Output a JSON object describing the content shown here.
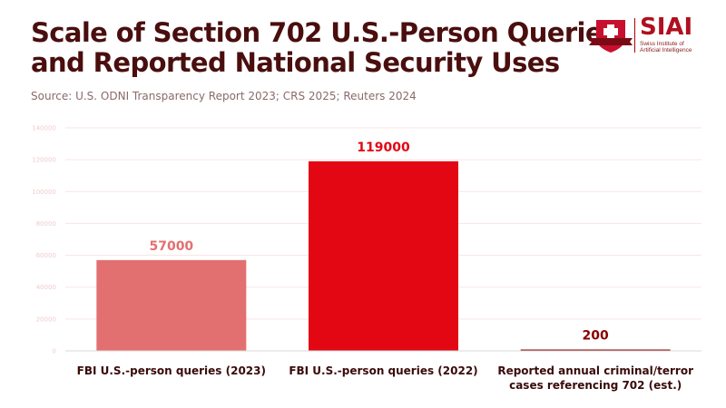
{
  "header": {
    "title_line1": "Scale of Section 702 U.S.-Person Queries",
    "title_line2": "and Reported National Security Uses",
    "source": "Source: U.S. ODNI Transparency Report 2023; CRS 2025; Reuters 2024"
  },
  "logo": {
    "name": "SIAI",
    "line1": "Swiss Institute of",
    "line2": "Artificial Intelligence"
  },
  "chart_data": {
    "type": "bar",
    "title": "Scale of Section 702 U.S.-Person Queries and Reported National Security Uses",
    "categories": [
      [
        "FBI U.S.-person queries (2023)"
      ],
      [
        "FBI U.S.-person queries (2022)"
      ],
      [
        "Reported annual criminal/terror",
        "cases referencing 702 (est.)"
      ]
    ],
    "values": [
      57000,
      119000,
      200
    ],
    "value_labels": [
      "57000",
      "119000",
      "200"
    ],
    "colors": [
      "#e37070",
      "#e30613",
      "#8b0000"
    ],
    "label_colors": [
      "#e37070",
      "#e30613",
      "#8b0000"
    ],
    "ylim": [
      0,
      140000
    ],
    "yticks": [
      "0",
      "20000",
      "40000",
      "60000",
      "80000",
      "100000",
      "120000",
      "140000"
    ],
    "ytick_values": [
      0,
      20000,
      40000,
      60000,
      80000,
      100000,
      120000,
      140000
    ],
    "grid": true,
    "xlabel": "",
    "ylabel": ""
  }
}
